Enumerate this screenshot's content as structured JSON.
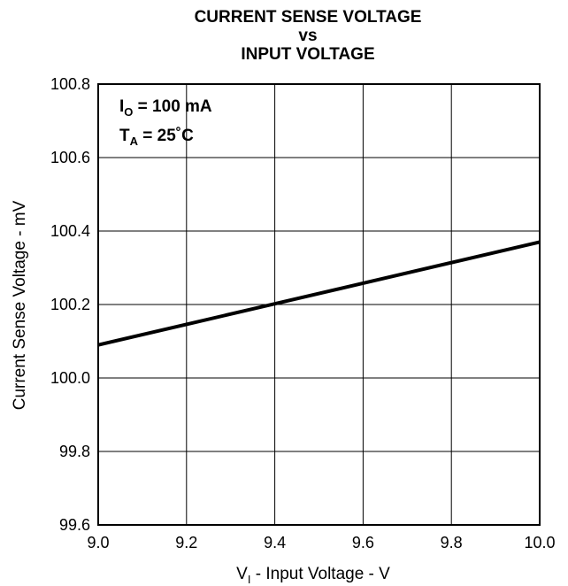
{
  "chart_data": {
    "type": "line",
    "title_lines": [
      "CURRENT SENSE VOLTAGE",
      "vs",
      "INPUT VOLTAGE"
    ],
    "xlabel": {
      "main": "V",
      "sub": "I",
      "rest": " - Input Voltage - V"
    },
    "ylabel": "Current Sense Voltage - mV",
    "xlim": [
      9.0,
      10.0
    ],
    "ylim": [
      99.6,
      100.8
    ],
    "x_ticks": [
      "9.0",
      "9.2",
      "9.4",
      "9.6",
      "9.8",
      "10.0"
    ],
    "y_ticks": [
      "99.6",
      "99.8",
      "100.0",
      "100.2",
      "100.4",
      "100.6",
      "100.8"
    ],
    "grid": true,
    "annotations": [
      {
        "main": "I",
        "sub": "O",
        "rest": " = 100 mA"
      },
      {
        "main": "T",
        "sub": "A",
        "rest": " = 25˚C"
      }
    ],
    "series": [
      {
        "x": [
          9.0,
          9.2,
          9.4,
          9.6,
          9.8,
          10.0
        ],
        "y": [
          100.09,
          100.146,
          100.202,
          100.258,
          100.314,
          100.37
        ]
      }
    ],
    "line_color": "#000000"
  }
}
